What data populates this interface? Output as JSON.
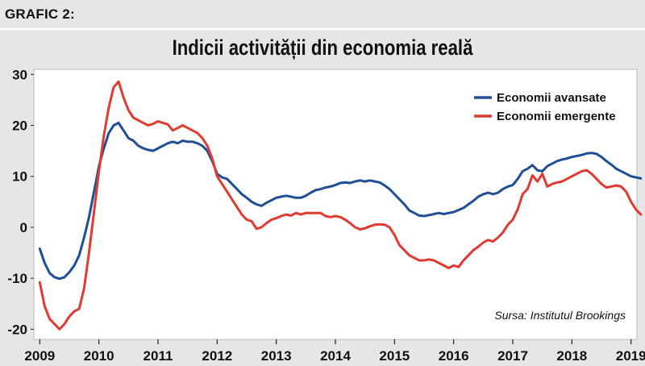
{
  "label": "GRAFIC 2:",
  "chart_data": {
    "type": "line",
    "title": "Indicii activității din economia reală",
    "xlabel": "",
    "ylabel": "",
    "xlim": [
      2008.9,
      2019.1
    ],
    "ylim": [
      -22,
      31
    ],
    "x_ticks": [
      2009,
      2010,
      2011,
      2012,
      2013,
      2014,
      2015,
      2016,
      2017,
      2018,
      2019
    ],
    "x_tick_labels": [
      "2009",
      "2010",
      "2011",
      "2012",
      "2013",
      "2014",
      "2015",
      "2016",
      "2017",
      "2018",
      "2019"
    ],
    "y_ticks": [
      30,
      20,
      10,
      0,
      -10,
      -20
    ],
    "y_tick_labels": [
      "30",
      "20",
      "10",
      "0",
      "-10",
      "-20"
    ],
    "grid": "off",
    "legend_position": "top-right",
    "annotation": "Sursa: Institutul Brookings",
    "series": [
      {
        "name": "Economii avansate",
        "color": "#1f4e96",
        "points": [
          [
            2009.0,
            -4.2
          ],
          [
            2009.083,
            -7.0
          ],
          [
            2009.167,
            -9.0
          ],
          [
            2009.25,
            -9.8
          ],
          [
            2009.333,
            -10.1
          ],
          [
            2009.417,
            -9.8
          ],
          [
            2009.5,
            -8.8
          ],
          [
            2009.583,
            -7.5
          ],
          [
            2009.667,
            -5.5
          ],
          [
            2009.75,
            -2.0
          ],
          [
            2009.833,
            2.0
          ],
          [
            2009.917,
            7.0
          ],
          [
            2010.0,
            12.0
          ],
          [
            2010.083,
            15.5
          ],
          [
            2010.167,
            18.5
          ],
          [
            2010.25,
            20.0
          ],
          [
            2010.333,
            20.5
          ],
          [
            2010.417,
            19.0
          ],
          [
            2010.5,
            17.5
          ],
          [
            2010.583,
            17.0
          ],
          [
            2010.667,
            16.0
          ],
          [
            2010.75,
            15.5
          ],
          [
            2010.833,
            15.2
          ],
          [
            2010.917,
            15.0
          ],
          [
            2011.0,
            15.5
          ],
          [
            2011.083,
            16.0
          ],
          [
            2011.167,
            16.5
          ],
          [
            2011.25,
            16.8
          ],
          [
            2011.333,
            16.5
          ],
          [
            2011.417,
            17.0
          ],
          [
            2011.5,
            16.8
          ],
          [
            2011.583,
            16.8
          ],
          [
            2011.667,
            16.5
          ],
          [
            2011.75,
            16.0
          ],
          [
            2011.833,
            15.0
          ],
          [
            2011.917,
            13.0
          ],
          [
            2012.0,
            10.5
          ],
          [
            2012.083,
            9.8
          ],
          [
            2012.167,
            9.5
          ],
          [
            2012.25,
            8.5
          ],
          [
            2012.333,
            7.5
          ],
          [
            2012.417,
            6.5
          ],
          [
            2012.5,
            5.8
          ],
          [
            2012.583,
            5.0
          ],
          [
            2012.667,
            4.5
          ],
          [
            2012.75,
            4.2
          ],
          [
            2012.833,
            4.8
          ],
          [
            2012.917,
            5.3
          ],
          [
            2013.0,
            5.8
          ],
          [
            2013.083,
            6.0
          ],
          [
            2013.167,
            6.2
          ],
          [
            2013.25,
            6.0
          ],
          [
            2013.333,
            5.8
          ],
          [
            2013.417,
            5.8
          ],
          [
            2013.5,
            6.2
          ],
          [
            2013.583,
            6.8
          ],
          [
            2013.667,
            7.3
          ],
          [
            2013.75,
            7.5
          ],
          [
            2013.833,
            7.8
          ],
          [
            2013.917,
            8.0
          ],
          [
            2014.0,
            8.3
          ],
          [
            2014.083,
            8.7
          ],
          [
            2014.167,
            8.8
          ],
          [
            2014.25,
            8.7
          ],
          [
            2014.333,
            9.0
          ],
          [
            2014.417,
            9.2
          ],
          [
            2014.5,
            9.0
          ],
          [
            2014.583,
            9.2
          ],
          [
            2014.667,
            9.0
          ],
          [
            2014.75,
            8.8
          ],
          [
            2014.833,
            8.2
          ],
          [
            2014.917,
            7.5
          ],
          [
            2015.0,
            6.5
          ],
          [
            2015.083,
            5.5
          ],
          [
            2015.167,
            4.5
          ],
          [
            2015.25,
            3.3
          ],
          [
            2015.333,
            2.8
          ],
          [
            2015.417,
            2.3
          ],
          [
            2015.5,
            2.2
          ],
          [
            2015.583,
            2.4
          ],
          [
            2015.667,
            2.6
          ],
          [
            2015.75,
            2.8
          ],
          [
            2015.833,
            2.6
          ],
          [
            2015.917,
            2.8
          ],
          [
            2016.0,
            3.0
          ],
          [
            2016.083,
            3.4
          ],
          [
            2016.167,
            3.8
          ],
          [
            2016.25,
            4.5
          ],
          [
            2016.333,
            5.2
          ],
          [
            2016.417,
            6.0
          ],
          [
            2016.5,
            6.5
          ],
          [
            2016.583,
            6.8
          ],
          [
            2016.667,
            6.5
          ],
          [
            2016.75,
            6.8
          ],
          [
            2016.833,
            7.5
          ],
          [
            2016.917,
            8.0
          ],
          [
            2017.0,
            8.3
          ],
          [
            2017.083,
            9.5
          ],
          [
            2017.167,
            11.0
          ],
          [
            2017.25,
            11.5
          ],
          [
            2017.333,
            12.2
          ],
          [
            2017.417,
            11.2
          ],
          [
            2017.5,
            11.0
          ],
          [
            2017.583,
            12.0
          ],
          [
            2017.667,
            12.5
          ],
          [
            2017.75,
            13.0
          ],
          [
            2017.833,
            13.3
          ],
          [
            2017.917,
            13.5
          ],
          [
            2018.0,
            13.8
          ],
          [
            2018.083,
            14.0
          ],
          [
            2018.167,
            14.2
          ],
          [
            2018.25,
            14.5
          ],
          [
            2018.333,
            14.6
          ],
          [
            2018.417,
            14.4
          ],
          [
            2018.5,
            13.8
          ],
          [
            2018.583,
            13.0
          ],
          [
            2018.667,
            12.3
          ],
          [
            2018.75,
            11.5
          ],
          [
            2018.833,
            11.0
          ],
          [
            2018.917,
            10.5
          ],
          [
            2019.0,
            10.0
          ],
          [
            2019.083,
            9.8
          ],
          [
            2019.167,
            9.6
          ]
        ]
      },
      {
        "name": "Economii emergente",
        "color": "#e03a31",
        "points": [
          [
            2009.0,
            -10.8
          ],
          [
            2009.083,
            -15.5
          ],
          [
            2009.167,
            -18.0
          ],
          [
            2009.25,
            -19.0
          ],
          [
            2009.333,
            -20.0
          ],
          [
            2009.417,
            -19.0
          ],
          [
            2009.5,
            -17.5
          ],
          [
            2009.583,
            -16.5
          ],
          [
            2009.667,
            -16.0
          ],
          [
            2009.75,
            -12.0
          ],
          [
            2009.833,
            -5.0
          ],
          [
            2009.917,
            3.0
          ],
          [
            2010.0,
            11.0
          ],
          [
            2010.083,
            18.0
          ],
          [
            2010.167,
            23.5
          ],
          [
            2010.25,
            27.5
          ],
          [
            2010.333,
            28.6
          ],
          [
            2010.417,
            25.5
          ],
          [
            2010.5,
            23.0
          ],
          [
            2010.583,
            21.5
          ],
          [
            2010.667,
            21.0
          ],
          [
            2010.75,
            20.5
          ],
          [
            2010.833,
            20.0
          ],
          [
            2010.917,
            20.3
          ],
          [
            2011.0,
            20.8
          ],
          [
            2011.083,
            20.5
          ],
          [
            2011.167,
            20.2
          ],
          [
            2011.25,
            19.0
          ],
          [
            2011.333,
            19.5
          ],
          [
            2011.417,
            20.0
          ],
          [
            2011.5,
            19.5
          ],
          [
            2011.583,
            19.0
          ],
          [
            2011.667,
            18.5
          ],
          [
            2011.75,
            17.5
          ],
          [
            2011.833,
            16.0
          ],
          [
            2011.917,
            13.5
          ],
          [
            2012.0,
            10.0
          ],
          [
            2012.083,
            8.5
          ],
          [
            2012.167,
            7.0
          ],
          [
            2012.25,
            5.5
          ],
          [
            2012.333,
            4.0
          ],
          [
            2012.417,
            2.5
          ],
          [
            2012.5,
            1.5
          ],
          [
            2012.583,
            1.2
          ],
          [
            2012.667,
            -0.3
          ],
          [
            2012.75,
            0.0
          ],
          [
            2012.833,
            0.8
          ],
          [
            2012.917,
            1.5
          ],
          [
            2013.0,
            1.8
          ],
          [
            2013.083,
            2.2
          ],
          [
            2013.167,
            2.5
          ],
          [
            2013.25,
            2.3
          ],
          [
            2013.333,
            2.8
          ],
          [
            2013.417,
            2.5
          ],
          [
            2013.5,
            2.8
          ],
          [
            2013.583,
            2.8
          ],
          [
            2013.667,
            2.8
          ],
          [
            2013.75,
            2.8
          ],
          [
            2013.833,
            2.2
          ],
          [
            2013.917,
            2.0
          ],
          [
            2014.0,
            2.2
          ],
          [
            2014.083,
            2.0
          ],
          [
            2014.167,
            1.5
          ],
          [
            2014.25,
            0.8
          ],
          [
            2014.333,
            0.0
          ],
          [
            2014.417,
            -0.4
          ],
          [
            2014.5,
            -0.2
          ],
          [
            2014.583,
            0.2
          ],
          [
            2014.667,
            0.5
          ],
          [
            2014.75,
            0.6
          ],
          [
            2014.833,
            0.5
          ],
          [
            2014.917,
            0.0
          ],
          [
            2015.0,
            -1.5
          ],
          [
            2015.083,
            -3.5
          ],
          [
            2015.167,
            -4.5
          ],
          [
            2015.25,
            -5.5
          ],
          [
            2015.333,
            -6.0
          ],
          [
            2015.417,
            -6.5
          ],
          [
            2015.5,
            -6.5
          ],
          [
            2015.583,
            -6.3
          ],
          [
            2015.667,
            -6.5
          ],
          [
            2015.75,
            -7.0
          ],
          [
            2015.833,
            -7.5
          ],
          [
            2015.917,
            -8.0
          ],
          [
            2016.0,
            -7.5
          ],
          [
            2016.083,
            -7.8
          ],
          [
            2016.167,
            -6.5
          ],
          [
            2016.25,
            -5.5
          ],
          [
            2016.333,
            -4.5
          ],
          [
            2016.417,
            -3.8
          ],
          [
            2016.5,
            -3.0
          ],
          [
            2016.583,
            -2.5
          ],
          [
            2016.667,
            -2.8
          ],
          [
            2016.75,
            -2.0
          ],
          [
            2016.833,
            -1.0
          ],
          [
            2016.917,
            0.5
          ],
          [
            2017.0,
            1.5
          ],
          [
            2017.083,
            3.5
          ],
          [
            2017.167,
            6.5
          ],
          [
            2017.25,
            7.5
          ],
          [
            2017.333,
            10.2
          ],
          [
            2017.417,
            9.0
          ],
          [
            2017.5,
            10.5
          ],
          [
            2017.583,
            8.0
          ],
          [
            2017.667,
            8.5
          ],
          [
            2017.75,
            8.8
          ],
          [
            2017.833,
            9.0
          ],
          [
            2017.917,
            9.5
          ],
          [
            2018.0,
            10.0
          ],
          [
            2018.083,
            10.5
          ],
          [
            2018.167,
            11.0
          ],
          [
            2018.25,
            11.2
          ],
          [
            2018.333,
            10.5
          ],
          [
            2018.417,
            9.5
          ],
          [
            2018.5,
            8.5
          ],
          [
            2018.583,
            7.8
          ],
          [
            2018.667,
            8.0
          ],
          [
            2018.75,
            8.2
          ],
          [
            2018.833,
            8.0
          ],
          [
            2018.917,
            7.0
          ],
          [
            2019.0,
            5.0
          ],
          [
            2019.083,
            3.5
          ],
          [
            2019.167,
            2.5
          ]
        ]
      }
    ]
  }
}
